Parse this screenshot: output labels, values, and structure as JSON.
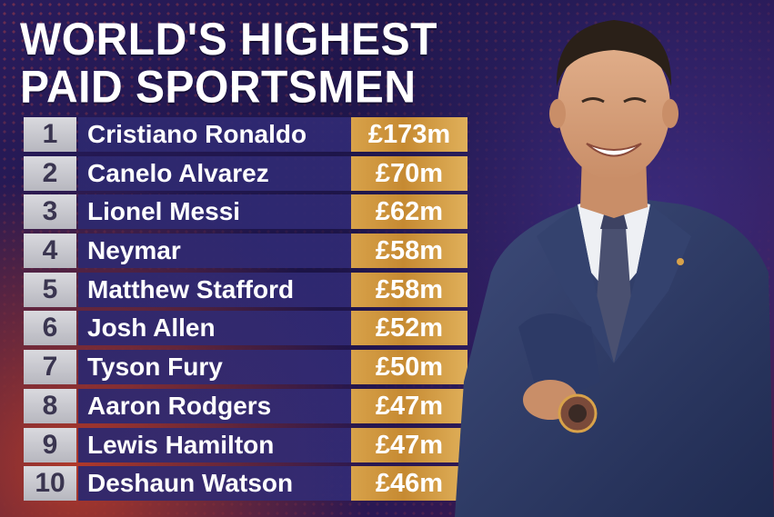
{
  "title": {
    "line1": "WORLD'S HIGHEST",
    "line2": "PAID SPORTSMEN"
  },
  "rows": [
    {
      "rank": "1",
      "name": "Cristiano Ronaldo",
      "earnings": "£173m"
    },
    {
      "rank": "2",
      "name": "Canelo Alvarez",
      "earnings": "£70m"
    },
    {
      "rank": "3",
      "name": "Lionel Messi",
      "earnings": "£62m"
    },
    {
      "rank": "4",
      "name": "Neymar",
      "earnings": "£58m"
    },
    {
      "rank": "5",
      "name": "Matthew Stafford",
      "earnings": "£58m"
    },
    {
      "rank": "6",
      "name": "Josh Allen",
      "earnings": "£52m"
    },
    {
      "rank": "7",
      "name": "Tyson Fury",
      "earnings": "£50m"
    },
    {
      "rank": "8",
      "name": "Aaron Rodgers",
      "earnings": "£47m"
    },
    {
      "rank": "9",
      "name": "Lewis Hamilton",
      "earnings": "£47m"
    },
    {
      "rank": "10",
      "name": "Deshaun Watson",
      "earnings": "£46m"
    }
  ],
  "colors": {
    "background": "#1c1446",
    "gold": "#d8a24a",
    "rank_box": "#c8c8cf",
    "name_bar": "#2d286e"
  }
}
